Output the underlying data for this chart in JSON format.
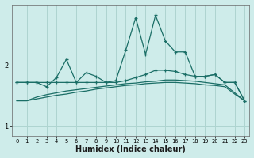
{
  "xlabel": "Humidex (Indice chaleur)",
  "background_color": "#ceecea",
  "grid_color": "#aed4d0",
  "line_color": "#1a6e66",
  "x": [
    0,
    1,
    2,
    3,
    4,
    5,
    6,
    7,
    8,
    9,
    10,
    11,
    12,
    13,
    14,
    15,
    16,
    17,
    18,
    19,
    20,
    21,
    22,
    23
  ],
  "line1": [
    1.72,
    1.72,
    1.72,
    1.65,
    1.8,
    2.1,
    1.72,
    1.88,
    1.82,
    1.72,
    1.75,
    2.25,
    2.78,
    2.18,
    2.82,
    2.4,
    2.22,
    2.22,
    1.82,
    1.82,
    1.85,
    1.72,
    1.72,
    1.42
  ],
  "line2": [
    1.72,
    1.72,
    1.72,
    1.72,
    1.72,
    1.72,
    1.72,
    1.72,
    1.72,
    1.72,
    1.72,
    1.75,
    1.8,
    1.85,
    1.92,
    1.92,
    1.9,
    1.85,
    1.82,
    1.82,
    1.85,
    1.72,
    1.72,
    1.42
  ],
  "line3": [
    1.42,
    1.42,
    1.48,
    1.52,
    1.55,
    1.58,
    1.6,
    1.62,
    1.64,
    1.66,
    1.68,
    1.7,
    1.71,
    1.73,
    1.74,
    1.76,
    1.76,
    1.75,
    1.74,
    1.72,
    1.7,
    1.68,
    1.55,
    1.42
  ],
  "line4": [
    1.42,
    1.42,
    1.45,
    1.48,
    1.51,
    1.53,
    1.56,
    1.58,
    1.61,
    1.63,
    1.65,
    1.67,
    1.68,
    1.7,
    1.71,
    1.72,
    1.72,
    1.71,
    1.7,
    1.68,
    1.67,
    1.65,
    1.53,
    1.42
  ],
  "yticks": [
    1,
    2
  ],
  "ylim": [
    0.85,
    3.0
  ],
  "xlim": [
    -0.5,
    23.5
  ]
}
